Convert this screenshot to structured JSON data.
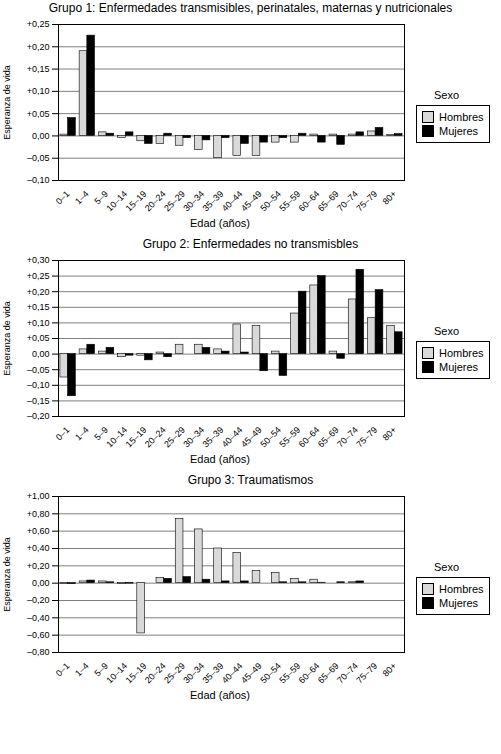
{
  "chart_data": [
    {
      "type": "bar",
      "title": "Grupo 1: Enfermedades transmisibles, perinatales, maternas y nutricionales",
      "x_label": "Edad (años)",
      "y_label": "Esperanza de vida",
      "legend_title": "Sexo",
      "categories": [
        "0–1",
        "1–4",
        "5–9",
        "10–14",
        "15–19",
        "20–24",
        "25–29",
        "30–34",
        "35–39",
        "40–44",
        "45–49",
        "50–54",
        "55–59",
        "60–64",
        "65–69",
        "70–74",
        "75–79",
        "80+"
      ],
      "series": [
        {
          "name": "Hombres",
          "color": "#d9d9d9",
          "values": [
            0.003,
            0.19,
            0.008,
            -0.005,
            -0.012,
            -0.018,
            -0.022,
            -0.032,
            -0.05,
            -0.045,
            -0.045,
            -0.015,
            -0.015,
            0.003,
            0.003,
            0.003,
            0.01,
            0.002
          ]
        },
        {
          "name": "Mujeres",
          "color": "#000000",
          "values": [
            0.04,
            0.225,
            0.005,
            0.008,
            -0.018,
            0.005,
            -0.005,
            -0.01,
            -0.005,
            -0.018,
            -0.015,
            -0.005,
            0.005,
            -0.015,
            -0.02,
            0.008,
            0.018,
            0.004
          ]
        }
      ],
      "ylim": [
        -0.1,
        0.25
      ],
      "yticks": [
        {
          "value": -0.1,
          "label": "–0,10"
        },
        {
          "value": -0.05,
          "label": "–0,05"
        },
        {
          "value": 0,
          "label": "0,00"
        },
        {
          "value": 0.05,
          "label": "+0,05"
        },
        {
          "value": 0.1,
          "label": "+0,10"
        },
        {
          "value": 0.15,
          "label": "+0,15"
        },
        {
          "value": 0.2,
          "label": "+0,20"
        },
        {
          "value": 0.25,
          "label": "+0,25"
        }
      ],
      "grid": true,
      "legend": "right"
    },
    {
      "type": "bar",
      "title": "Grupo 2: Enfermedades no transmisbles",
      "x_label": "Edad (años)",
      "y_label": "Esperanza de vida",
      "legend_title": "Sexo",
      "categories": [
        "0–1",
        "1–4",
        "5–9",
        "10–14",
        "15–19",
        "20–24",
        "25–29",
        "30–34",
        "35–39",
        "40–44",
        "45–49",
        "50–54",
        "55–59",
        "60–64",
        "65–69",
        "70–74",
        "75–79",
        "80+"
      ],
      "series": [
        {
          "name": "Hombres",
          "color": "#d9d9d9",
          "values": [
            -0.075,
            0.015,
            0.008,
            -0.01,
            -0.005,
            0.005,
            0.03,
            0.03,
            0.015,
            0.095,
            0.09,
            0.008,
            0.13,
            0.22,
            0.008,
            0.175,
            0.115,
            0.09
          ]
        },
        {
          "name": "Mujeres",
          "color": "#000000",
          "values": [
            -0.135,
            0.03,
            0.02,
            -0.005,
            -0.02,
            -0.01,
            0,
            0.02,
            0.008,
            0.005,
            -0.055,
            -0.07,
            0.2,
            0.25,
            -0.015,
            0.27,
            0.205,
            0.07
          ]
        }
      ],
      "ylim": [
        -0.2,
        0.3
      ],
      "yticks": [
        {
          "value": -0.2,
          "label": "–0,20"
        },
        {
          "value": -0.15,
          "label": "–0,15"
        },
        {
          "value": -0.1,
          "label": "–0,10"
        },
        {
          "value": -0.05,
          "label": "–0,05"
        },
        {
          "value": 0,
          "label": "0,00"
        },
        {
          "value": 0.05,
          "label": "+0,05"
        },
        {
          "value": 0.1,
          "label": "+0,10"
        },
        {
          "value": 0.15,
          "label": "+0,15"
        },
        {
          "value": 0.2,
          "label": "+0,20"
        },
        {
          "value": 0.25,
          "label": "+0,25"
        },
        {
          "value": 0.3,
          "label": "+0,30"
        }
      ],
      "grid": true,
      "legend": "right"
    },
    {
      "type": "bar",
      "title": "Grupo 3: Traumatismos",
      "x_label": "Edad (años)",
      "y_label": "Esperanza de vida",
      "legend_title": "Sexo",
      "categories": [
        "0–1",
        "1–4",
        "5–9",
        "10–14",
        "15–19",
        "20–24",
        "25–29",
        "30–34",
        "35–39",
        "40–44",
        "45–49",
        "50–54",
        "55–59",
        "60–64",
        "65–69",
        "70–74",
        "75–79",
        "80+"
      ],
      "series": [
        {
          "name": "Hombres",
          "color": "#d9d9d9",
          "values": [
            -0.01,
            0.02,
            0.02,
            -0.01,
            -0.58,
            0.06,
            0.74,
            0.62,
            0.4,
            0.35,
            0.14,
            0.12,
            0.05,
            0.04,
            0,
            0.01,
            0,
            0
          ]
        },
        {
          "name": "Mujeres",
          "color": "#000000",
          "values": [
            -0.01,
            0.03,
            0.01,
            -0.005,
            0,
            0.05,
            0.07,
            0.04,
            0.02,
            0.02,
            0,
            0.01,
            0.01,
            0.005,
            0.01,
            0.02,
            0,
            0
          ]
        }
      ],
      "ylim": [
        -0.8,
        1.0
      ],
      "yticks": [
        {
          "value": -0.8,
          "label": "–0,80"
        },
        {
          "value": -0.6,
          "label": "–0,60"
        },
        {
          "value": -0.4,
          "label": "–0,40"
        },
        {
          "value": -0.2,
          "label": "–0,20"
        },
        {
          "value": 0,
          "label": "0,00"
        },
        {
          "value": 0.2,
          "label": "+0,20"
        },
        {
          "value": 0.4,
          "label": "+0,40"
        },
        {
          "value": 0.6,
          "label": "+0,60"
        },
        {
          "value": 0.8,
          "label": "+0,80"
        },
        {
          "value": 1.0,
          "label": "+1,00"
        }
      ],
      "grid": true,
      "legend": "right"
    }
  ]
}
